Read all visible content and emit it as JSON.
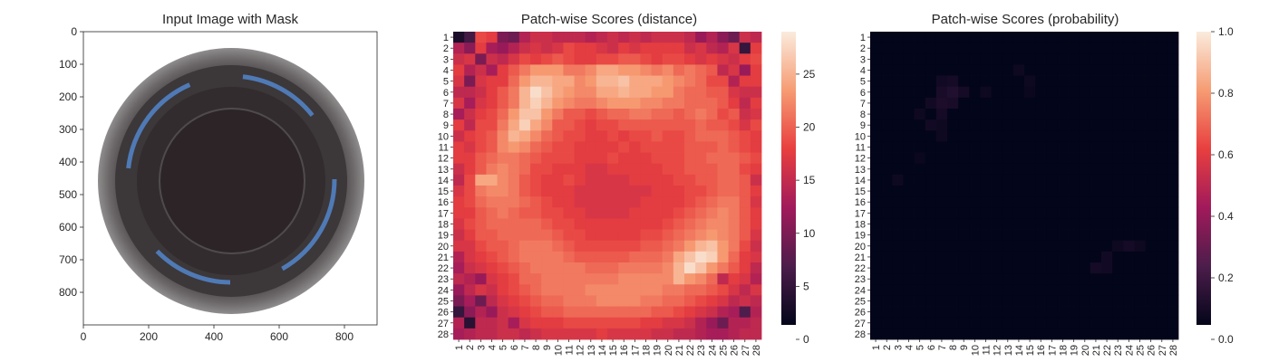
{
  "figure": {
    "panels": [
      {
        "title": "Input Image with Mask",
        "x_ticks": [
          "0",
          "200",
          "400",
          "600",
          "800"
        ],
        "y_ticks": [
          "0",
          "100",
          "200",
          "300",
          "400",
          "500",
          "600",
          "700",
          "800"
        ]
      },
      {
        "title": "Patch-wise Scores (distance)"
      },
      {
        "title": "Patch-wise Scores (probability)"
      }
    ]
  },
  "colors": {
    "image_background": "#ffffff",
    "lens_dark": "#2c2426",
    "lens_rim": "#5e5b5d",
    "blue_reflection": "#4f7ab5",
    "colormap": "rocket",
    "colormap_stops": [
      "#03051a",
      "#4c1d4b",
      "#a11a5b",
      "#e83f3f",
      "#f69c73",
      "#faebdd"
    ]
  },
  "chart_data": [
    {
      "type": "image",
      "title": "Input Image with Mask",
      "xlim": [
        0,
        900
      ],
      "ylim": [
        900,
        0
      ],
      "x_ticks": [
        0,
        200,
        400,
        600,
        800
      ],
      "y_ticks": [
        0,
        100,
        200,
        300,
        400,
        500,
        600,
        700,
        800
      ],
      "content": "top view of a round glass bottle mouth"
    },
    {
      "type": "heatmap",
      "title": "Patch-wise Scores (distance)",
      "rows": 28,
      "cols": 28,
      "x_tick_labels": [
        "1",
        "2",
        "3",
        "4",
        "5",
        "6",
        "7",
        "8",
        "9",
        "10",
        "11",
        "12",
        "13",
        "14",
        "15",
        "16",
        "17",
        "18",
        "19",
        "20",
        "21",
        "22",
        "23",
        "24",
        "25",
        "26",
        "27",
        "28"
      ],
      "y_tick_labels": [
        "1",
        "2",
        "3",
        "4",
        "5",
        "6",
        "7",
        "8",
        "9",
        "10",
        "11",
        "12",
        "13",
        "14",
        "15",
        "16",
        "17",
        "18",
        "19",
        "20",
        "21",
        "22",
        "23",
        "24",
        "25",
        "26",
        "27",
        "28"
      ],
      "vmin": 0,
      "vmax": 29,
      "colorbar_ticks": [
        0,
        5,
        10,
        15,
        20,
        25
      ],
      "colormap": "rocket",
      "values": [
        [
          2,
          5,
          18,
          17,
          9,
          8,
          13,
          15,
          15,
          14,
          14,
          14,
          13,
          14,
          15,
          14,
          15,
          14,
          15,
          15,
          15,
          14,
          11,
          13,
          10,
          8,
          15,
          14
        ],
        [
          13,
          10,
          17,
          12,
          11,
          13,
          15,
          16,
          15,
          16,
          18,
          17,
          17,
          16,
          15,
          17,
          16,
          17,
          17,
          17,
          17,
          15,
          16,
          14,
          13,
          16,
          4,
          17
        ],
        [
          15,
          16,
          9,
          15,
          14,
          16,
          18,
          17,
          18,
          19,
          18,
          17,
          17,
          18,
          18,
          19,
          19,
          18,
          17,
          18,
          18,
          17,
          16,
          17,
          16,
          15,
          17,
          18
        ],
        [
          17,
          13,
          15,
          12,
          17,
          19,
          21,
          23,
          23,
          23,
          21,
          21,
          22,
          24,
          24,
          23,
          23,
          22,
          21,
          22,
          20,
          21,
          20,
          19,
          14,
          16,
          11,
          17
        ],
        [
          16,
          9,
          16,
          17,
          17,
          20,
          23,
          25,
          25,
          24,
          24,
          22,
          23,
          25,
          25,
          26,
          24,
          24,
          24,
          23,
          22,
          21,
          20,
          18,
          18,
          13,
          17,
          17
        ],
        [
          14,
          14,
          15,
          17,
          19,
          21,
          25,
          28,
          26,
          24,
          23,
          22,
          22,
          24,
          24,
          25,
          24,
          24,
          23,
          23,
          21,
          20,
          20,
          19,
          19,
          16,
          15,
          15
        ],
        [
          16,
          12,
          16,
          17,
          19,
          21,
          25,
          27,
          25,
          23,
          22,
          21,
          21,
          22,
          23,
          23,
          23,
          22,
          22,
          21,
          21,
          20,
          20,
          20,
          19,
          17,
          14,
          17
        ],
        [
          12,
          15,
          17,
          18,
          20,
          23,
          26,
          26,
          23,
          21,
          19,
          19,
          18,
          19,
          20,
          20,
          21,
          21,
          20,
          20,
          19,
          20,
          21,
          20,
          18,
          19,
          15,
          16
        ],
        [
          17,
          14,
          18,
          18,
          21,
          24,
          27,
          24,
          22,
          19,
          19,
          18,
          17,
          18,
          18,
          19,
          19,
          19,
          19,
          19,
          19,
          19,
          20,
          19,
          19,
          18,
          16,
          18
        ],
        [
          15,
          17,
          18,
          19,
          22,
          25,
          24,
          22,
          20,
          19,
          18,
          18,
          17,
          17,
          18,
          17,
          18,
          18,
          19,
          18,
          18,
          19,
          20,
          20,
          20,
          19,
          18,
          17
        ],
        [
          17,
          16,
          18,
          19,
          22,
          23,
          22,
          20,
          19,
          18,
          18,
          17,
          17,
          17,
          17,
          18,
          17,
          18,
          18,
          18,
          18,
          19,
          19,
          19,
          20,
          19,
          18,
          17
        ],
        [
          17,
          17,
          19,
          20,
          21,
          21,
          20,
          19,
          18,
          18,
          18,
          17,
          17,
          17,
          18,
          17,
          17,
          17,
          18,
          18,
          18,
          19,
          19,
          20,
          20,
          20,
          19,
          18
        ],
        [
          15,
          17,
          19,
          21,
          22,
          21,
          20,
          18,
          18,
          17,
          17,
          17,
          16,
          16,
          17,
          17,
          17,
          17,
          17,
          18,
          18,
          19,
          19,
          19,
          20,
          20,
          18,
          17
        ],
        [
          14,
          18,
          24,
          24,
          22,
          21,
          19,
          18,
          17,
          17,
          18,
          17,
          16,
          16,
          16,
          16,
          17,
          17,
          17,
          17,
          18,
          18,
          19,
          19,
          20,
          20,
          19,
          15
        ],
        [
          16,
          18,
          21,
          22,
          22,
          21,
          19,
          18,
          17,
          17,
          17,
          16,
          16,
          16,
          16,
          16,
          16,
          16,
          17,
          17,
          17,
          18,
          18,
          19,
          20,
          20,
          19,
          17
        ],
        [
          17,
          18,
          20,
          21,
          21,
          21,
          20,
          19,
          18,
          17,
          17,
          16,
          16,
          16,
          16,
          16,
          16,
          17,
          17,
          17,
          17,
          18,
          19,
          20,
          21,
          21,
          19,
          16
        ],
        [
          17,
          17,
          19,
          20,
          21,
          20,
          19,
          19,
          18,
          18,
          17,
          17,
          16,
          16,
          16,
          16,
          17,
          17,
          17,
          17,
          18,
          19,
          20,
          21,
          22,
          21,
          19,
          17
        ],
        [
          16,
          18,
          19,
          20,
          20,
          20,
          20,
          20,
          19,
          18,
          18,
          17,
          17,
          17,
          17,
          17,
          17,
          17,
          17,
          18,
          19,
          20,
          21,
          22,
          22,
          21,
          19,
          17
        ],
        [
          15,
          17,
          19,
          19,
          20,
          20,
          20,
          20,
          20,
          19,
          18,
          18,
          17,
          17,
          17,
          17,
          17,
          18,
          18,
          19,
          20,
          21,
          22,
          23,
          22,
          21,
          19,
          16
        ],
        [
          16,
          16,
          18,
          19,
          19,
          20,
          21,
          21,
          21,
          20,
          19,
          18,
          18,
          18,
          18,
          18,
          18,
          19,
          19,
          20,
          21,
          23,
          25,
          26,
          23,
          21,
          18,
          15
        ],
        [
          13,
          16,
          17,
          18,
          19,
          20,
          21,
          21,
          21,
          21,
          20,
          19,
          19,
          19,
          19,
          19,
          20,
          20,
          20,
          21,
          24,
          26,
          28,
          27,
          23,
          20,
          17,
          16
        ],
        [
          12,
          15,
          16,
          17,
          18,
          19,
          20,
          21,
          21,
          21,
          21,
          21,
          20,
          20,
          20,
          21,
          21,
          21,
          21,
          22,
          25,
          28,
          26,
          23,
          21,
          19,
          17,
          14
        ],
        [
          14,
          13,
          11,
          16,
          17,
          18,
          20,
          20,
          21,
          21,
          21,
          21,
          21,
          21,
          21,
          22,
          22,
          22,
          22,
          22,
          25,
          23,
          22,
          20,
          14,
          17,
          16,
          13
        ],
        [
          11,
          14,
          16,
          15,
          17,
          18,
          19,
          20,
          21,
          21,
          21,
          21,
          22,
          22,
          22,
          22,
          22,
          22,
          22,
          21,
          21,
          20,
          20,
          19,
          18,
          16,
          14,
          16
        ],
        [
          9,
          12,
          8,
          14,
          16,
          17,
          18,
          19,
          20,
          20,
          21,
          21,
          21,
          22,
          22,
          22,
          22,
          21,
          21,
          20,
          20,
          19,
          18,
          17,
          16,
          14,
          15,
          14
        ],
        [
          4,
          10,
          13,
          11,
          15,
          16,
          17,
          18,
          19,
          19,
          20,
          20,
          20,
          20,
          20,
          20,
          20,
          20,
          19,
          19,
          18,
          17,
          16,
          15,
          13,
          12,
          6,
          13
        ],
        [
          13,
          3,
          14,
          14,
          15,
          12,
          16,
          17,
          17,
          17,
          18,
          18,
          18,
          18,
          18,
          18,
          18,
          17,
          17,
          16,
          16,
          15,
          13,
          11,
          8,
          13,
          13,
          14
        ],
        [
          12,
          13,
          14,
          14,
          15,
          15,
          14,
          15,
          16,
          16,
          16,
          16,
          16,
          17,
          16,
          16,
          16,
          16,
          15,
          15,
          14,
          14,
          13,
          12,
          12,
          13,
          14,
          14
        ]
      ]
    },
    {
      "type": "heatmap",
      "title": "Patch-wise Scores (probability)",
      "rows": 28,
      "cols": 28,
      "x_tick_labels": [
        "1",
        "2",
        "3",
        "4",
        "5",
        "6",
        "7",
        "8",
        "9",
        "10",
        "11",
        "12",
        "13",
        "14",
        "15",
        "16",
        "17",
        "18",
        "19",
        "20",
        "21",
        "22",
        "23",
        "24",
        "25",
        "26",
        "27",
        "28"
      ],
      "y_tick_labels": [
        "1",
        "2",
        "3",
        "4",
        "5",
        "6",
        "7",
        "8",
        "9",
        "10",
        "11",
        "12",
        "13",
        "14",
        "15",
        "16",
        "17",
        "18",
        "19",
        "20",
        "21",
        "22",
        "23",
        "24",
        "25",
        "26",
        "27",
        "28"
      ],
      "vmin": 0,
      "vmax": 1,
      "colorbar_ticks": [
        0.0,
        0.2,
        0.4,
        0.6,
        0.8,
        1.0
      ],
      "colormap": "rocket",
      "background_value": 0,
      "nonzero_cells": [
        {
          "row": 4,
          "col": 14,
          "value": 0.03
        },
        {
          "row": 5,
          "col": 7,
          "value": 0.04
        },
        {
          "row": 5,
          "col": 8,
          "value": 0.05
        },
        {
          "row": 5,
          "col": 15,
          "value": 0.03
        },
        {
          "row": 6,
          "col": 7,
          "value": 0.06
        },
        {
          "row": 6,
          "col": 8,
          "value": 0.08
        },
        {
          "row": 6,
          "col": 9,
          "value": 0.05
        },
        {
          "row": 6,
          "col": 11,
          "value": 0.03
        },
        {
          "row": 6,
          "col": 15,
          "value": 0.02
        },
        {
          "row": 7,
          "col": 6,
          "value": 0.04
        },
        {
          "row": 7,
          "col": 7,
          "value": 0.07
        },
        {
          "row": 7,
          "col": 8,
          "value": 0.06
        },
        {
          "row": 8,
          "col": 7,
          "value": 0.05
        },
        {
          "row": 8,
          "col": 5,
          "value": 0.03
        },
        {
          "row": 9,
          "col": 6,
          "value": 0.04
        },
        {
          "row": 9,
          "col": 7,
          "value": 0.03
        },
        {
          "row": 10,
          "col": 7,
          "value": 0.03
        },
        {
          "row": 12,
          "col": 5,
          "value": 0.02
        },
        {
          "row": 14,
          "col": 3,
          "value": 0.03
        },
        {
          "row": 20,
          "col": 23,
          "value": 0.03
        },
        {
          "row": 20,
          "col": 24,
          "value": 0.05
        },
        {
          "row": 20,
          "col": 25,
          "value": 0.03
        },
        {
          "row": 21,
          "col": 22,
          "value": 0.04
        },
        {
          "row": 22,
          "col": 21,
          "value": 0.05
        },
        {
          "row": 22,
          "col": 22,
          "value": 0.04
        }
      ]
    }
  ]
}
